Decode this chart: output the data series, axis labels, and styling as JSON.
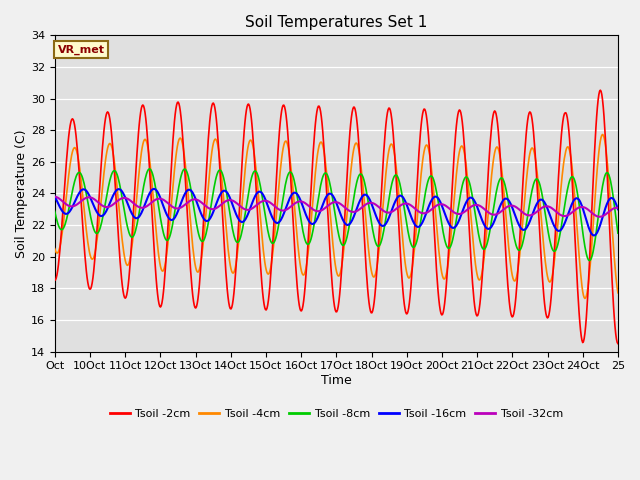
{
  "title": "Soil Temperatures Set 1",
  "xlabel": "Time",
  "ylabel": "Soil Temperature (C)",
  "annotation": "VR_met",
  "ylim": [
    14,
    34
  ],
  "fig_bg": "#f0f0f0",
  "plot_bg": "#e0e0e0",
  "xtick_labels": [
    "Oct",
    "10Oct",
    "11Oct",
    "12Oct",
    "13Oct",
    "14Oct",
    "15Oct",
    "16Oct",
    "17Oct",
    "18Oct",
    "19Oct",
    "20Oct",
    "21Oct",
    "22Oct",
    "23Oct",
    "24Oct",
    "25"
  ],
  "series_colors": {
    "Tsoil -2cm": "#ff0000",
    "Tsoil -4cm": "#ff8800",
    "Tsoil -8cm": "#00cc00",
    "Tsoil -16cm": "#0000ff",
    "Tsoil -32cm": "#bb00bb"
  },
  "legend_colors": [
    "#ff0000",
    "#ff8800",
    "#00cc00",
    "#0000ff",
    "#bb00bb"
  ],
  "legend_labels": [
    "Tsoil -2cm",
    "Tsoil -4cm",
    "Tsoil -8cm",
    "Tsoil -16cm",
    "Tsoil -32cm"
  ]
}
